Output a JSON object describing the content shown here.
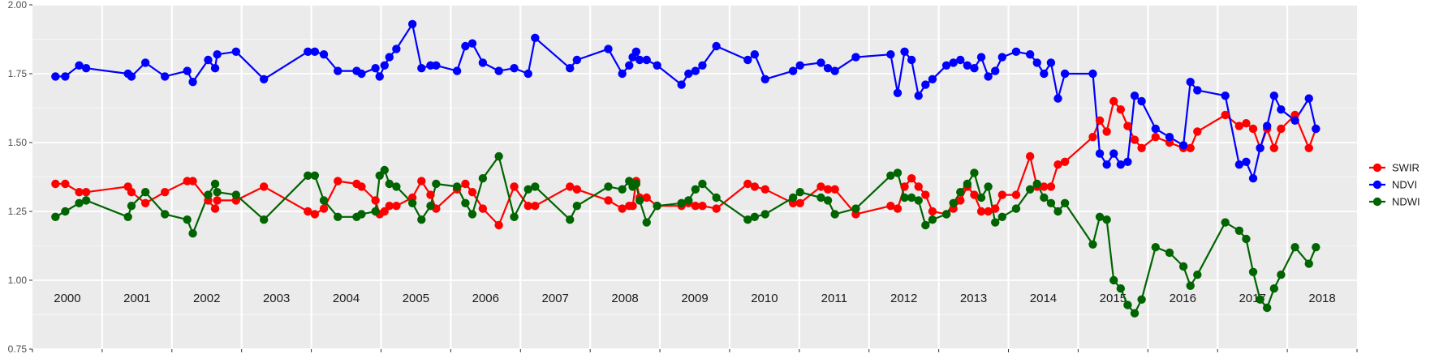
{
  "chart_data": {
    "type": "line",
    "title": "",
    "xlabel": "",
    "ylabel": "",
    "xlim": [
      2000.0,
      2019.0
    ],
    "ylim": [
      0.75,
      2.0
    ],
    "yticks": [
      "0.75",
      "1.00",
      "1.25",
      "1.50",
      "1.75",
      "2.00"
    ],
    "year_labels": [
      "2000",
      "2001",
      "2002",
      "2003",
      "2004",
      "2005",
      "2006",
      "2007",
      "2008",
      "2009",
      "2010",
      "2011",
      "2012",
      "2013",
      "2014",
      "2015",
      "2016",
      "2017",
      "2018"
    ],
    "grid": true,
    "legend_position": "right",
    "series": [
      {
        "name": "SWIR",
        "color": "#ff0000",
        "x": [
          2000.33,
          2000.47,
          2000.67,
          2000.77,
          2001.37,
          2001.42,
          2001.62,
          2001.9,
          2002.22,
          2002.3,
          2002.52,
          2002.62,
          2002.65,
          2002.92,
          2003.32,
          2003.95,
          2004.05,
          2004.18,
          2004.38,
          2004.65,
          2004.72,
          2004.92,
          2004.98,
          2005.05,
          2005.12,
          2005.22,
          2005.45,
          2005.58,
          2005.71,
          2005.79,
          2006.09,
          2006.21,
          2006.31,
          2006.46,
          2006.69,
          2006.91,
          2007.11,
          2007.21,
          2007.71,
          2007.81,
          2008.26,
          2008.46,
          2008.56,
          2008.61,
          2008.66,
          2008.71,
          2008.81,
          2008.96,
          2009.31,
          2009.41,
          2009.51,
          2009.61,
          2009.81,
          2010.26,
          2010.36,
          2010.51,
          2010.91,
          2011.01,
          2011.31,
          2011.41,
          2011.51,
          2011.81,
          2012.31,
          2012.41,
          2012.51,
          2012.61,
          2012.71,
          2012.81,
          2012.91,
          2013.11,
          2013.21,
          2013.31,
          2013.41,
          2013.51,
          2013.61,
          2013.71,
          2013.81,
          2013.91,
          2014.11,
          2014.31,
          2014.41,
          2014.51,
          2014.61,
          2014.71,
          2014.81,
          2015.21,
          2015.31,
          2015.41,
          2015.51,
          2015.61,
          2015.71,
          2015.81,
          2015.91,
          2016.11,
          2016.31,
          2016.51,
          2016.61,
          2016.71,
          2017.11,
          2017.31,
          2017.41,
          2017.51,
          2017.61,
          2017.71,
          2017.81,
          2017.91,
          2018.11,
          2018.31,
          2018.41
        ],
        "y": [
          1.35,
          1.35,
          1.32,
          1.32,
          1.34,
          1.32,
          1.28,
          1.32,
          1.36,
          1.36,
          1.29,
          1.26,
          1.29,
          1.29,
          1.34,
          1.25,
          1.24,
          1.26,
          1.36,
          1.35,
          1.34,
          1.29,
          1.24,
          1.25,
          1.27,
          1.27,
          1.3,
          1.36,
          1.31,
          1.26,
          1.33,
          1.35,
          1.32,
          1.26,
          1.2,
          1.34,
          1.27,
          1.27,
          1.34,
          1.33,
          1.29,
          1.26,
          1.27,
          1.27,
          1.36,
          1.3,
          1.3,
          1.27,
          1.27,
          1.28,
          1.27,
          1.27,
          1.26,
          1.35,
          1.34,
          1.33,
          1.28,
          1.28,
          1.34,
          1.33,
          1.33,
          1.24,
          1.27,
          1.26,
          1.34,
          1.37,
          1.34,
          1.31,
          1.25,
          1.24,
          1.26,
          1.29,
          1.34,
          1.31,
          1.25,
          1.25,
          1.26,
          1.31,
          1.31,
          1.45,
          1.34,
          1.34,
          1.34,
          1.42,
          1.43,
          1.52,
          1.58,
          1.54,
          1.65,
          1.62,
          1.56,
          1.51,
          1.48,
          1.52,
          1.5,
          1.48,
          1.48,
          1.54,
          1.6,
          1.56,
          1.57,
          1.55,
          1.48,
          1.55,
          1.48,
          1.55,
          1.6,
          1.48,
          1.55
        ]
      },
      {
        "name": "NDVI",
        "color": "#0000ff",
        "x": [
          2000.33,
          2000.47,
          2000.67,
          2000.77,
          2001.37,
          2001.42,
          2001.62,
          2001.9,
          2002.22,
          2002.3,
          2002.52,
          2002.62,
          2002.65,
          2002.92,
          2003.32,
          2003.95,
          2004.05,
          2004.18,
          2004.38,
          2004.65,
          2004.72,
          2004.92,
          2004.98,
          2005.05,
          2005.12,
          2005.22,
          2005.45,
          2005.58,
          2005.71,
          2005.79,
          2006.09,
          2006.21,
          2006.31,
          2006.46,
          2006.69,
          2006.91,
          2007.11,
          2007.21,
          2007.71,
          2007.81,
          2008.26,
          2008.46,
          2008.56,
          2008.61,
          2008.66,
          2008.71,
          2008.81,
          2008.96,
          2009.31,
          2009.41,
          2009.51,
          2009.61,
          2009.81,
          2010.26,
          2010.36,
          2010.51,
          2010.91,
          2011.01,
          2011.31,
          2011.41,
          2011.51,
          2011.81,
          2012.31,
          2012.41,
          2012.51,
          2012.61,
          2012.71,
          2012.81,
          2012.91,
          2013.11,
          2013.21,
          2013.31,
          2013.41,
          2013.51,
          2013.61,
          2013.71,
          2013.81,
          2013.91,
          2014.11,
          2014.31,
          2014.41,
          2014.51,
          2014.61,
          2014.71,
          2014.81,
          2015.21,
          2015.31,
          2015.41,
          2015.51,
          2015.61,
          2015.71,
          2015.81,
          2015.91,
          2016.11,
          2016.31,
          2016.51,
          2016.61,
          2016.71,
          2017.11,
          2017.31,
          2017.41,
          2017.51,
          2017.61,
          2017.71,
          2017.81,
          2017.91,
          2018.11,
          2018.31,
          2018.41
        ],
        "y": [
          1.74,
          1.74,
          1.78,
          1.77,
          1.75,
          1.74,
          1.79,
          1.74,
          1.76,
          1.72,
          1.8,
          1.77,
          1.82,
          1.83,
          1.73,
          1.83,
          1.83,
          1.82,
          1.76,
          1.76,
          1.75,
          1.77,
          1.74,
          1.78,
          1.81,
          1.84,
          1.93,
          1.77,
          1.78,
          1.78,
          1.76,
          1.85,
          1.86,
          1.79,
          1.76,
          1.77,
          1.75,
          1.88,
          1.77,
          1.8,
          1.84,
          1.75,
          1.78,
          1.81,
          1.83,
          1.8,
          1.8,
          1.78,
          1.71,
          1.75,
          1.76,
          1.78,
          1.85,
          1.8,
          1.82,
          1.73,
          1.76,
          1.78,
          1.79,
          1.77,
          1.76,
          1.81,
          1.82,
          1.68,
          1.83,
          1.8,
          1.67,
          1.71,
          1.73,
          1.78,
          1.79,
          1.8,
          1.78,
          1.77,
          1.81,
          1.74,
          1.76,
          1.81,
          1.83,
          1.82,
          1.79,
          1.75,
          1.79,
          1.66,
          1.75,
          1.75,
          1.46,
          1.42,
          1.46,
          1.42,
          1.43,
          1.67,
          1.65,
          1.55,
          1.52,
          1.49,
          1.72,
          1.69,
          1.67,
          1.42,
          1.43,
          1.37,
          1.48,
          1.56,
          1.67,
          1.62,
          1.58,
          1.66,
          1.55
        ]
      },
      {
        "name": "NDWI",
        "color": "#006400",
        "x": [
          2000.33,
          2000.47,
          2000.67,
          2000.77,
          2001.37,
          2001.42,
          2001.62,
          2001.9,
          2002.22,
          2002.3,
          2002.52,
          2002.62,
          2002.65,
          2002.92,
          2003.32,
          2003.95,
          2004.05,
          2004.18,
          2004.38,
          2004.65,
          2004.72,
          2004.92,
          2004.98,
          2005.05,
          2005.12,
          2005.22,
          2005.45,
          2005.58,
          2005.71,
          2005.79,
          2006.09,
          2006.21,
          2006.31,
          2006.46,
          2006.69,
          2006.91,
          2007.11,
          2007.21,
          2007.71,
          2007.81,
          2008.26,
          2008.46,
          2008.56,
          2008.61,
          2008.66,
          2008.71,
          2008.81,
          2008.96,
          2009.31,
          2009.41,
          2009.51,
          2009.61,
          2009.81,
          2010.26,
          2010.36,
          2010.51,
          2010.91,
          2011.01,
          2011.31,
          2011.41,
          2011.51,
          2011.81,
          2012.31,
          2012.41,
          2012.51,
          2012.61,
          2012.71,
          2012.81,
          2012.91,
          2013.11,
          2013.21,
          2013.31,
          2013.41,
          2013.51,
          2013.61,
          2013.71,
          2013.81,
          2013.91,
          2014.11,
          2014.31,
          2014.41,
          2014.51,
          2014.61,
          2014.71,
          2014.81,
          2015.21,
          2015.31,
          2015.41,
          2015.51,
          2015.61,
          2015.71,
          2015.81,
          2015.91,
          2016.11,
          2016.31,
          2016.51,
          2016.61,
          2016.71,
          2017.11,
          2017.31,
          2017.41,
          2017.51,
          2017.61,
          2017.71,
          2017.81,
          2017.91,
          2018.11,
          2018.31,
          2018.41
        ],
        "y": [
          1.23,
          1.25,
          1.28,
          1.29,
          1.23,
          1.27,
          1.32,
          1.24,
          1.22,
          1.17,
          1.31,
          1.35,
          1.32,
          1.31,
          1.22,
          1.38,
          1.38,
          1.29,
          1.23,
          1.23,
          1.24,
          1.25,
          1.38,
          1.4,
          1.35,
          1.34,
          1.28,
          1.22,
          1.27,
          1.35,
          1.34,
          1.28,
          1.24,
          1.37,
          1.45,
          1.23,
          1.33,
          1.34,
          1.22,
          1.27,
          1.34,
          1.33,
          1.36,
          1.34,
          1.35,
          1.29,
          1.21,
          1.27,
          1.28,
          1.29,
          1.33,
          1.35,
          1.3,
          1.22,
          1.23,
          1.24,
          1.3,
          1.32,
          1.3,
          1.29,
          1.24,
          1.26,
          1.38,
          1.39,
          1.3,
          1.3,
          1.29,
          1.2,
          1.22,
          1.24,
          1.28,
          1.32,
          1.35,
          1.39,
          1.3,
          1.34,
          1.21,
          1.23,
          1.26,
          1.33,
          1.35,
          1.3,
          1.28,
          1.25,
          1.28,
          1.13,
          1.23,
          1.22,
          1.0,
          0.97,
          0.91,
          0.88,
          0.93,
          1.12,
          1.1,
          1.05,
          0.98,
          1.02,
          1.21,
          1.18,
          1.15,
          1.03,
          0.93,
          0.9,
          0.97,
          1.02,
          1.12,
          1.06,
          1.12
        ]
      }
    ]
  }
}
